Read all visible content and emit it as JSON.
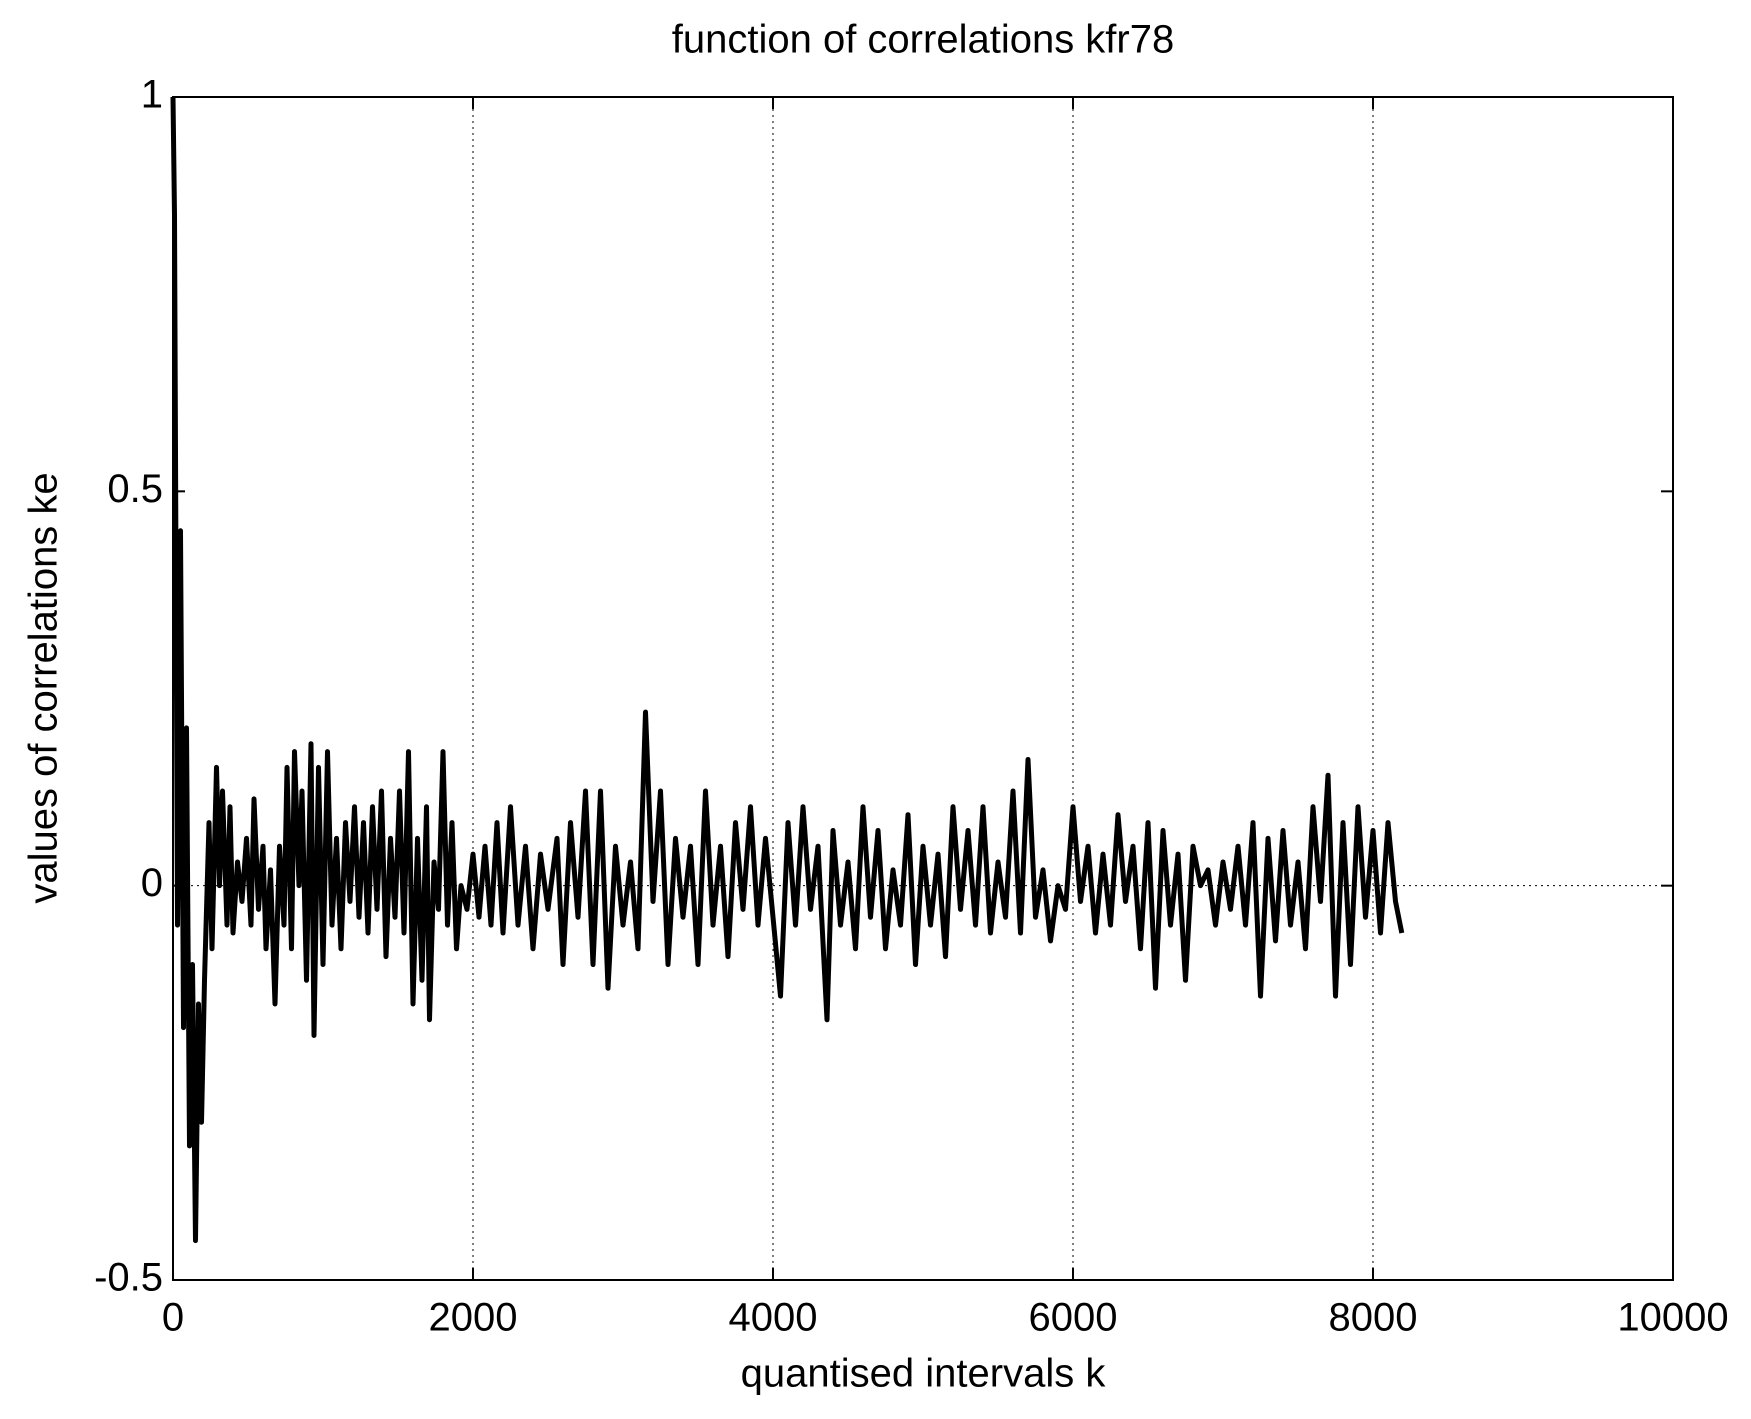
{
  "chart_data": {
    "type": "line",
    "title": "function of correlations kfr78",
    "x_label": "quantised intervals k",
    "y_label": "values of correlations ke",
    "color": "#000000",
    "grid": "x",
    "reference_line": {
      "y": 0,
      "style": "dotted"
    },
    "xlim": [
      0,
      10000
    ],
    "xticks": [
      0,
      2000,
      4000,
      6000,
      8000,
      10000
    ],
    "ylim": [
      -0.5,
      1
    ],
    "yticks": [
      -0.5,
      0,
      0.5,
      1
    ],
    "x": [
      0,
      10,
      30,
      50,
      70,
      90,
      110,
      130,
      150,
      170,
      190,
      210,
      240,
      260,
      290,
      310,
      330,
      360,
      380,
      400,
      430,
      460,
      490,
      520,
      540,
      570,
      600,
      620,
      650,
      680,
      710,
      740,
      760,
      790,
      810,
      840,
      860,
      890,
      920,
      940,
      970,
      1000,
      1030,
      1060,
      1090,
      1120,
      1150,
      1180,
      1210,
      1240,
      1270,
      1300,
      1330,
      1360,
      1390,
      1420,
      1450,
      1480,
      1510,
      1540,
      1570,
      1600,
      1630,
      1660,
      1690,
      1710,
      1740,
      1770,
      1800,
      1830,
      1860,
      1890,
      1920,
      1960,
      2000,
      2040,
      2080,
      2120,
      2160,
      2200,
      2250,
      2300,
      2350,
      2400,
      2450,
      2500,
      2560,
      2600,
      2650,
      2700,
      2750,
      2800,
      2850,
      2900,
      2950,
      3000,
      3050,
      3100,
      3150,
      3200,
      3250,
      3300,
      3350,
      3400,
      3450,
      3500,
      3550,
      3600,
      3650,
      3700,
      3750,
      3800,
      3850,
      3900,
      3950,
      4050,
      4100,
      4150,
      4200,
      4250,
      4300,
      4360,
      4400,
      4450,
      4500,
      4550,
      4600,
      4650,
      4700,
      4750,
      4800,
      4850,
      4900,
      4950,
      5000,
      5050,
      5100,
      5150,
      5200,
      5250,
      5300,
      5350,
      5400,
      5450,
      5500,
      5550,
      5600,
      5650,
      5700,
      5750,
      5800,
      5850,
      5900,
      5950,
      6000,
      6050,
      6100,
      6150,
      6200,
      6250,
      6300,
      6350,
      6400,
      6450,
      6500,
      6550,
      6600,
      6650,
      6700,
      6750,
      6800,
      6850,
      6900,
      6950,
      7000,
      7050,
      7100,
      7150,
      7200,
      7250,
      7300,
      7350,
      7400,
      7450,
      7500,
      7550,
      7600,
      7650,
      7700,
      7750,
      7800,
      7850,
      7900,
      7950,
      8000,
      8050,
      8100,
      8150,
      8192
    ],
    "values": [
      1,
      0.85,
      -0.05,
      0.45,
      -0.18,
      0.2,
      -0.33,
      -0.1,
      -0.45,
      -0.15,
      -0.3,
      -0.12,
      0.08,
      -0.08,
      0.15,
      0,
      0.12,
      -0.05,
      0.1,
      -0.06,
      0.03,
      -0.02,
      0.06,
      -0.05,
      0.11,
      -0.03,
      0.05,
      -0.08,
      0.02,
      -0.15,
      0.05,
      -0.05,
      0.15,
      -0.08,
      0.17,
      0,
      0.12,
      -0.12,
      0.18,
      -0.19,
      0.15,
      -0.1,
      0.17,
      -0.05,
      0.06,
      -0.08,
      0.08,
      -0.02,
      0.1,
      -0.04,
      0.08,
      -0.06,
      0.1,
      -0.03,
      0.12,
      -0.09,
      0.06,
      -0.04,
      0.12,
      -0.06,
      0.17,
      -0.15,
      0.06,
      -0.12,
      0.1,
      -0.17,
      0.03,
      -0.03,
      0.17,
      -0.05,
      0.08,
      -0.08,
      0,
      -0.03,
      0.04,
      -0.04,
      0.05,
      -0.05,
      0.08,
      -0.06,
      0.1,
      -0.05,
      0.05,
      -0.08,
      0.04,
      -0.03,
      0.06,
      -0.1,
      0.08,
      -0.04,
      0.12,
      -0.1,
      0.12,
      -0.13,
      0.05,
      -0.05,
      0.03,
      -0.08,
      0.22,
      -0.02,
      0.12,
      -0.1,
      0.06,
      -0.04,
      0.05,
      -0.1,
      0.12,
      -0.05,
      0.05,
      -0.09,
      0.08,
      -0.03,
      0.1,
      -0.05,
      0.06,
      -0.14,
      0.08,
      -0.05,
      0.1,
      -0.03,
      0.05,
      -0.17,
      0.07,
      -0.05,
      0.03,
      -0.08,
      0.1,
      -0.04,
      0.07,
      -0.08,
      0.02,
      -0.05,
      0.09,
      -0.1,
      0.05,
      -0.05,
      0.04,
      -0.09,
      0.1,
      -0.03,
      0.07,
      -0.05,
      0.1,
      -0.06,
      0.03,
      -0.04,
      0.12,
      -0.06,
      0.16,
      -0.04,
      0.02,
      -0.07,
      0,
      -0.03,
      0.1,
      -0.02,
      0.05,
      -0.06,
      0.04,
      -0.05,
      0.09,
      -0.02,
      0.05,
      -0.08,
      0.08,
      -0.13,
      0.07,
      -0.05,
      0.04,
      -0.12,
      0.05,
      0,
      0.02,
      -0.05,
      0.03,
      -0.03,
      0.05,
      -0.05,
      0.08,
      -0.14,
      0.06,
      -0.07,
      0.07,
      -0.05,
      0.03,
      -0.08,
      0.1,
      -0.02,
      0.14,
      -0.14,
      0.08,
      -0.1,
      0.1,
      -0.04,
      0.07,
      -0.06,
      0.08,
      -0.02,
      -0.06
    ]
  }
}
